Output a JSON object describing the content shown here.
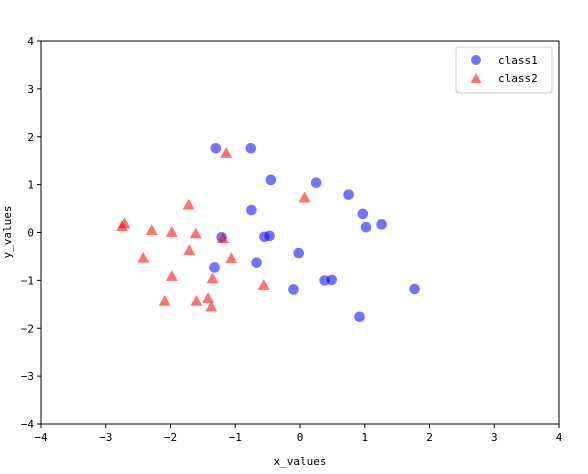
{
  "chart_data": {
    "type": "scatter",
    "title": "",
    "xlabel": "x_values",
    "ylabel": "y_values",
    "xlim": [
      -4,
      4
    ],
    "ylim": [
      -4,
      4
    ],
    "xticks": [
      "−4",
      "−3",
      "−2",
      "−1",
      "0",
      "1",
      "2",
      "3",
      "4"
    ],
    "yticks": [
      "−4",
      "−3",
      "−2",
      "−1",
      "0",
      "1",
      "2",
      "3",
      "4"
    ],
    "grid": false,
    "legend_position": "top-right",
    "series": [
      {
        "name": "class1",
        "marker": "circle",
        "color": "#0000ff",
        "points": [
          [
            -1.3,
            1.76
          ],
          [
            -0.76,
            1.76
          ],
          [
            -0.45,
            1.1
          ],
          [
            0.25,
            1.04
          ],
          [
            0.75,
            0.79
          ],
          [
            -0.75,
            0.47
          ],
          [
            0.97,
            0.39
          ],
          [
            1.26,
            0.17
          ],
          [
            1.02,
            0.11
          ],
          [
            -1.21,
            -0.1
          ],
          [
            -0.55,
            -0.09
          ],
          [
            -0.47,
            -0.07
          ],
          [
            -0.02,
            -0.43
          ],
          [
            -1.32,
            -0.73
          ],
          [
            -0.67,
            -0.63
          ],
          [
            0.38,
            -1.0
          ],
          [
            0.49,
            -0.99
          ],
          [
            -0.1,
            -1.19
          ],
          [
            1.77,
            -1.18
          ],
          [
            0.92,
            -1.76
          ]
        ]
      },
      {
        "name": "class2",
        "marker": "triangle",
        "color": "#ff0000",
        "points": [
          [
            -1.14,
            1.66
          ],
          [
            0.07,
            0.73
          ],
          [
            -1.72,
            0.58
          ],
          [
            -2.71,
            0.19
          ],
          [
            -2.75,
            0.13
          ],
          [
            -2.29,
            0.05
          ],
          [
            -1.98,
            0.01
          ],
          [
            -1.61,
            -0.02
          ],
          [
            -1.19,
            -0.12
          ],
          [
            -1.71,
            -0.37
          ],
          [
            -2.42,
            -0.53
          ],
          [
            -1.06,
            -0.54
          ],
          [
            -1.98,
            -0.91
          ],
          [
            -1.35,
            -0.96
          ],
          [
            -0.56,
            -1.1
          ],
          [
            -1.42,
            -1.37
          ],
          [
            -2.09,
            -1.43
          ],
          [
            -1.6,
            -1.43
          ],
          [
            -1.37,
            -1.55
          ]
        ]
      }
    ]
  }
}
